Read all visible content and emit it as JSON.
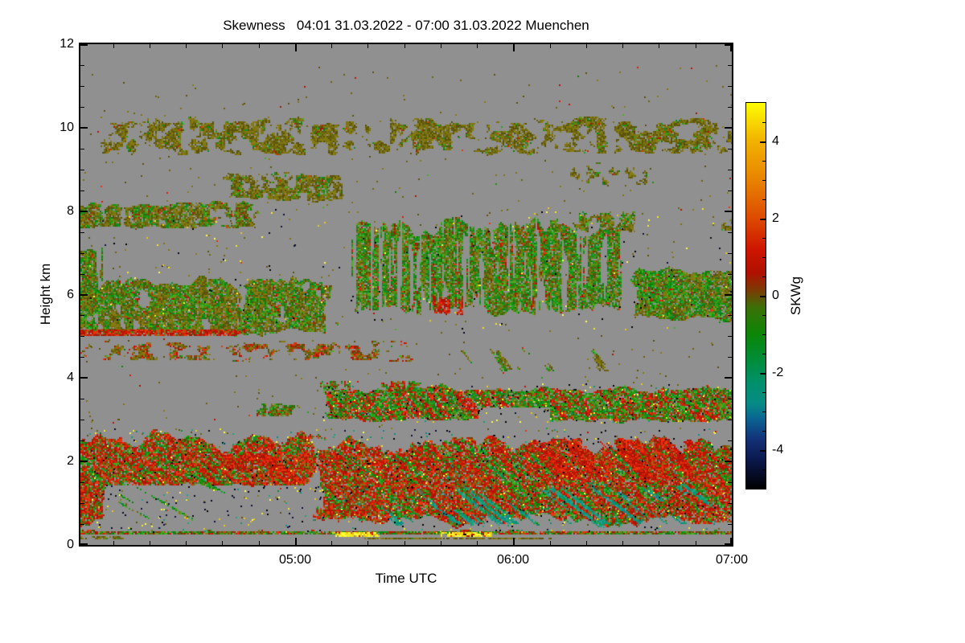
{
  "page": {
    "background": "#ffffff"
  },
  "chart_data": {
    "type": "heatmap",
    "title": "Skewness   04:01 31.03.2022 - 07:00 31.03.2022 Muenchen",
    "instrument_site": "Muenchen",
    "time_start": "04:01 31.03.2022",
    "time_end": "07:00 31.03.2022",
    "xlabel": "Time UTC",
    "ylabel": "Height km",
    "nodata_color": "#909090",
    "x_axis": {
      "range_min": [
        0,
        179
      ],
      "start_label_time": "04:01",
      "major": [
        {
          "t": 59,
          "label": "05:00"
        },
        {
          "t": 119,
          "label": "06:00"
        },
        {
          "t": 179,
          "label": "07:00"
        }
      ],
      "minor_step_min": 10
    },
    "y_axis": {
      "range": [
        0,
        12
      ],
      "major": [
        0,
        2,
        4,
        6,
        8,
        10,
        12
      ],
      "minor_step": 0.5
    },
    "colorbar": {
      "label": "SKWg",
      "range": [
        -5,
        5
      ],
      "major_ticks": [
        -4,
        -2,
        0,
        2,
        4
      ],
      "minor_step": 0.5,
      "gradient": [
        {
          "v": 5.0,
          "c": "#fdfd02"
        },
        {
          "v": 4.0,
          "c": "#f2b100"
        },
        {
          "v": 3.0,
          "c": "#e88300"
        },
        {
          "v": 2.0,
          "c": "#dd4a00"
        },
        {
          "v": 1.2,
          "c": "#cd1500"
        },
        {
          "v": 0.6,
          "c": "#b01000"
        },
        {
          "v": 0.15,
          "c": "#7c3a04"
        },
        {
          "v": -0.3,
          "c": "#3c7006"
        },
        {
          "v": -1.0,
          "c": "#0b8606"
        },
        {
          "v": -1.7,
          "c": "#008d3c"
        },
        {
          "v": -2.2,
          "c": "#009068"
        },
        {
          "v": -2.8,
          "c": "#068b85"
        },
        {
          "v": -3.2,
          "c": "#0a6292"
        },
        {
          "v": -3.7,
          "c": "#133278"
        },
        {
          "v": -4.2,
          "c": "#0c1a52"
        },
        {
          "v": -5.0,
          "c": "#000000"
        }
      ]
    },
    "palette_colors": {
      "olive": [
        "#7d7410",
        "#6b630e",
        "#867c14",
        "#59530c"
      ],
      "green": [
        "#17930d",
        "#0c7f0a",
        "#28a11b",
        "#0b8e2e",
        "#45b01f"
      ],
      "red": [
        "#d71f07",
        "#c11203",
        "#e8350e",
        "#a81505"
      ],
      "teal": [
        "#0e9a6e",
        "#0b8b8b",
        "#20a384"
      ],
      "yellow": [
        "#f2ea14",
        "#eac80c",
        "#fdfd40"
      ],
      "black": [
        "#000000",
        "#090921",
        "#0d123d"
      ]
    },
    "layers": [
      {
        "name": "upper-cirrus",
        "t": [
          2,
          179
        ],
        "h": [
          9.3,
          10.35
        ],
        "density": 0.5,
        "shape": "patchy",
        "scale": [
          0.42,
          5.0
        ],
        "palette": {
          "olive": 0.78,
          "green": 0.12,
          "red": 0.1
        }
      },
      {
        "name": "upper-cirrus-wisps",
        "t": [
          0,
          179
        ],
        "h": [
          10.3,
          11.6
        ],
        "density": 0.07,
        "shape": "patchy",
        "scale": [
          0.5,
          4.0
        ],
        "palette": {
          "olive": 0.8,
          "green": 0.1,
          "red": 0.1
        }
      },
      {
        "name": "sparse-dots-global",
        "type": "dots",
        "t": [
          0,
          179
        ],
        "h": [
          0.4,
          11.5
        ],
        "count": 700,
        "palette": {
          "olive": 0.85,
          "red": 0.1,
          "green": 0.05
        }
      },
      {
        "name": "cloud-86-left",
        "t": [
          36,
          76
        ],
        "h": [
          8.2,
          9.05
        ],
        "density": 0.62,
        "shape": "patchy",
        "scale": [
          0.38,
          4.5
        ],
        "palette": {
          "olive": 0.68,
          "green": 0.22,
          "red": 0.1
        }
      },
      {
        "name": "cloud-86-right",
        "t": [
          128,
          160
        ],
        "h": [
          8.55,
          9.3
        ],
        "density": 0.4,
        "shape": "patchy",
        "scale": [
          0.45,
          4.5
        ],
        "palette": {
          "olive": 0.72,
          "green": 0.18,
          "red": 0.1
        }
      },
      {
        "name": "cloud-8-left",
        "t": [
          0,
          52
        ],
        "h": [
          7.55,
          8.3
        ],
        "density": 0.62,
        "shape": "patchy",
        "scale": [
          0.4,
          4.2
        ],
        "palette": {
          "olive": 0.6,
          "green": 0.25,
          "red": 0.15
        }
      },
      {
        "name": "cloud-8-right",
        "t": [
          126,
          158
        ],
        "h": [
          7.45,
          8.12
        ],
        "density": 0.55,
        "shape": "patchy",
        "scale": [
          0.45,
          4.2
        ],
        "palette": {
          "olive": 0.58,
          "green": 0.3,
          "red": 0.12
        },
        "holes": [
          [
            131,
            136,
            7.75,
            7.98
          ]
        ]
      },
      {
        "name": "cloud-8-right-edge",
        "t": [
          170,
          179
        ],
        "h": [
          7.5,
          7.95
        ],
        "density": 0.45,
        "shape": "patchy",
        "scale": [
          0.5,
          4.5
        ],
        "palette": {
          "olive": 0.7,
          "green": 0.2,
          "red": 0.1
        }
      },
      {
        "name": "midlevel-virga-center",
        "t": [
          70,
          152
        ],
        "h": [
          5.35,
          8.15
        ],
        "density": 0.6,
        "shape": "streak-v",
        "scale": [
          1.3,
          0.8
        ],
        "palette": {
          "olive": 0.42,
          "green": 0.36,
          "red": 0.22
        }
      },
      {
        "name": "midlevel-left",
        "t": [
          0,
          72
        ],
        "h": [
          4.95,
          6.6
        ],
        "density": 0.72,
        "shape": "patchy",
        "scale": [
          0.3,
          2.4
        ],
        "palette": {
          "olive": 0.52,
          "green": 0.3,
          "red": 0.18
        }
      },
      {
        "name": "midlevel-left-column",
        "t": [
          0,
          9
        ],
        "h": [
          5.4,
          7.35
        ],
        "density": 0.7,
        "shape": "streak-v",
        "scale": [
          1.6,
          0.8
        ],
        "palette": {
          "olive": 0.5,
          "green": 0.3,
          "red": 0.2
        }
      },
      {
        "name": "red-line-5km",
        "t": [
          0,
          48
        ],
        "h": [
          5.0,
          5.17
        ],
        "density": 0.85,
        "shape": "patchy",
        "scale": [
          0.9,
          9
        ],
        "palette": {
          "red": 0.72,
          "olive": 0.22,
          "green": 0.06
        }
      },
      {
        "name": "midlevel-right",
        "t": [
          148,
          179
        ],
        "h": [
          5.25,
          6.9
        ],
        "density": 0.82,
        "shape": "patchy",
        "scale": [
          0.32,
          2.4
        ],
        "palette": {
          "olive": 0.5,
          "green": 0.36,
          "red": 0.14
        }
      },
      {
        "name": "mid-red-blob",
        "t": [
          92,
          110
        ],
        "h": [
          5.5,
          6.05
        ],
        "density": 0.5,
        "shape": "streak-v",
        "scale": [
          1.3,
          1.1
        ],
        "palette": {
          "red": 0.82,
          "olive": 0.18
        }
      },
      {
        "name": "thin-layer-46",
        "t": [
          0,
          96
        ],
        "h": [
          4.4,
          4.98
        ],
        "density": 0.42,
        "shape": "streak-h",
        "scale": [
          0.38,
          8
        ],
        "palette": {
          "olive": 0.55,
          "red": 0.25,
          "green": 0.2
        }
      },
      {
        "name": "virga-43",
        "t": [
          98,
          160
        ],
        "h": [
          4.12,
          4.8
        ],
        "density": 0.3,
        "shape": "diag",
        "slope": 9,
        "scale": [
          0.35,
          5
        ],
        "palette": {
          "olive": 0.6,
          "green": 0.3,
          "red": 0.1
        }
      },
      {
        "name": "patch-33",
        "t": [
          44,
          62
        ],
        "h": [
          3.08,
          3.46
        ],
        "density": 0.68,
        "shape": "patchy",
        "scale": [
          0.7,
          5
        ],
        "palette": {
          "olive": 0.45,
          "green": 0.3,
          "red": 0.25
        }
      },
      {
        "name": "patch-38a",
        "t": [
          62,
          79
        ],
        "h": [
          3.7,
          3.98
        ],
        "density": 0.6,
        "shape": "patchy",
        "scale": [
          0.8,
          6
        ],
        "palette": {
          "red": 0.4,
          "green": 0.3,
          "olive": 0.26,
          "yellow": 0.02,
          "black": 0.02
        }
      },
      {
        "name": "patch-38b",
        "t": [
          80,
          98
        ],
        "h": [
          3.66,
          3.95
        ],
        "density": 0.62,
        "shape": "patchy",
        "scale": [
          0.8,
          6
        ],
        "palette": {
          "red": 0.42,
          "green": 0.3,
          "olive": 0.22,
          "yellow": 0.03,
          "black": 0.03
        }
      },
      {
        "name": "cloud-band-35",
        "t": [
          64,
          179
        ],
        "h": [
          2.9,
          3.92
        ],
        "density": 0.9,
        "shape": "diag",
        "slope": 10,
        "scale": [
          0.38,
          3.6
        ],
        "palette": {
          "red": 0.42,
          "green": 0.32,
          "olive": 0.24,
          "teal": 0.02
        },
        "holes": [
          [
            110,
            128,
            2.88,
            3.26
          ]
        ]
      },
      {
        "name": "boundary-layer-left",
        "t": [
          0,
          68
        ],
        "h": [
          0.35,
          2.92
        ],
        "density": 0.82,
        "shape": "diag",
        "slope": 13,
        "scale": [
          0.36,
          3.0
        ],
        "palette": {
          "green": 0.38,
          "red": 0.34,
          "olive": 0.26,
          "teal": 0.02
        },
        "holes": [
          [
            7,
            66,
            0.45,
            1.42
          ]
        ]
      },
      {
        "name": "bl-left-diag-streaks",
        "t": [
          5,
          42
        ],
        "h": [
          0.5,
          2.05
        ],
        "density": 0.3,
        "shape": "diag",
        "slope": 20,
        "scale": [
          0.5,
          2.2
        ],
        "palette": {
          "green": 0.78,
          "olive": 0.22
        }
      },
      {
        "name": "bl-red-left",
        "t": [
          28,
          68
        ],
        "h": [
          1.35,
          2.4
        ],
        "density": 0.45,
        "shape": "diag",
        "slope": 12,
        "scale": [
          0.3,
          2.8
        ],
        "palette": {
          "red": 0.75,
          "olive": 0.25
        }
      },
      {
        "name": "boundary-layer-right",
        "t": [
          62,
          179
        ],
        "h": [
          0.35,
          2.86
        ],
        "density": 0.94,
        "shape": "diag",
        "slope": 12,
        "scale": [
          0.36,
          3.0
        ],
        "palette": {
          "green": 0.37,
          "red": 0.37,
          "olive": 0.2,
          "teal": 0.06
        }
      },
      {
        "name": "bl-teal-bands",
        "t": [
          80,
          178
        ],
        "h": [
          0.38,
          1.6
        ],
        "density": 0.34,
        "shape": "diag",
        "slope": 15,
        "scale": [
          0.42,
          2.6
        ],
        "palette": {
          "teal": 0.82,
          "green": 0.18
        }
      },
      {
        "name": "bl-red-patch-right",
        "t": [
          116,
          174
        ],
        "h": [
          1.45,
          2.8
        ],
        "density": 0.5,
        "shape": "diag",
        "slope": 10,
        "scale": [
          0.3,
          2.8
        ],
        "palette": {
          "red": 0.8,
          "olive": 0.2
        }
      },
      {
        "name": "surface-echo-line",
        "t": [
          0,
          179
        ],
        "h": [
          0.26,
          0.38
        ],
        "density": 0.97,
        "shape": "patchy",
        "scale": [
          1.6,
          9
        ],
        "palette": {
          "red": 0.38,
          "green": 0.3,
          "olive": 0.26,
          "yellow": 0.04,
          "black": 0.02
        }
      },
      {
        "name": "surface-echo-sub",
        "t": [
          75,
          132
        ],
        "h": [
          0.14,
          0.21
        ],
        "density": 0.85,
        "shape": "patchy",
        "scale": [
          1.6,
          9
        ],
        "palette": {
          "olive": 0.88,
          "green": 0.12
        }
      },
      {
        "name": "surface-dashes-left",
        "t": [
          0,
          17
        ],
        "h": [
          0.13,
          0.22
        ],
        "density": 0.55,
        "shape": "patchy",
        "scale": [
          1.3,
          9
        ],
        "palette": {
          "olive": 0.8,
          "green": 0.2
        }
      },
      {
        "name": "surface-bright-1",
        "t": [
          66,
          84
        ],
        "h": [
          0.2,
          0.33
        ],
        "density": 0.92,
        "shape": "patchy",
        "scale": [
          2.2,
          11
        ],
        "palette": {
          "yellow": 0.78,
          "red": 0.18,
          "black": 0.04
        }
      },
      {
        "name": "surface-bright-2",
        "t": [
          96,
          116
        ],
        "h": [
          0.2,
          0.33
        ],
        "density": 0.92,
        "shape": "patchy",
        "scale": [
          2.2,
          11
        ],
        "palette": {
          "yellow": 0.72,
          "red": 0.14,
          "black": 0.14
        }
      },
      {
        "name": "extreme-dots-bl",
        "type": "dots",
        "t": [
          2,
          179
        ],
        "h": [
          0.35,
          2.8
        ],
        "count": 800,
        "palette": {
          "black": 0.5,
          "yellow": 0.3,
          "teal": 0.2
        }
      },
      {
        "name": "extreme-dots-band35",
        "type": "dots",
        "t": [
          66,
          179
        ],
        "h": [
          2.95,
          3.88
        ],
        "count": 220,
        "palette": {
          "black": 0.45,
          "yellow": 0.4,
          "teal": 0.15
        }
      },
      {
        "name": "extreme-dots-mid",
        "type": "dots",
        "t": [
          2,
          179
        ],
        "h": [
          5.1,
          8.1
        ],
        "count": 200,
        "palette": {
          "yellow": 0.5,
          "black": 0.5
        }
      }
    ]
  }
}
